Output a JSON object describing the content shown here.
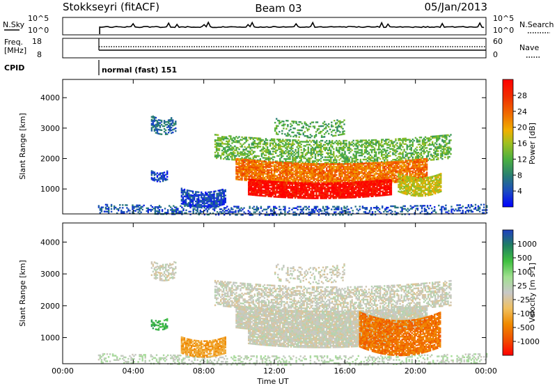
{
  "header": {
    "station": "Stokkseyri (fitACF)",
    "beam": "Beam 03",
    "date": "05/Jan/2013"
  },
  "strips": {
    "nsky": {
      "label": "N.Sky",
      "tick_top": "10^5",
      "tick_bottom": "10^0",
      "right_label": "N.Search",
      "right_tick_top": "10^5",
      "right_tick_bottom": "10^0"
    },
    "freq": {
      "label_line1": "Freq.",
      "label_line2": "[MHz]",
      "tick_top": "18",
      "tick_bottom": "8",
      "right_label": "Nave",
      "right_tick_top": "60",
      "right_tick_bottom": "0"
    },
    "cpid": {
      "label": "CPID",
      "mode": "normal (fast) 151"
    }
  },
  "chart_data": [
    {
      "type": "heatmap",
      "panel": "power",
      "ylabel": "Slant Range [km]",
      "y_ticks": [
        "1000",
        "2000",
        "3000",
        "4000"
      ],
      "ylim": [
        180,
        4600
      ],
      "xlim_hours": [
        0,
        24
      ],
      "colorbar": {
        "label": "Power [dB]",
        "ticks": [
          "4",
          "8",
          "12",
          "16",
          "20",
          "24",
          "28"
        ],
        "range": [
          0,
          32
        ],
        "colors": [
          "#0000ff",
          "#1c4cc0",
          "#2a8070",
          "#4cb040",
          "#a0c020",
          "#f0b000",
          "#f07000",
          "#f03000",
          "#ff0000"
        ]
      },
      "echo_regions": [
        {
          "t0": 2.0,
          "t1": 24.0,
          "r0": 200,
          "r1": 500,
          "level": 0.15,
          "density": 0.35
        },
        {
          "t0": 5.0,
          "t1": 6.4,
          "r0": 2900,
          "r1": 3400,
          "level": 0.2,
          "density": 0.5
        },
        {
          "t0": 5.0,
          "t1": 5.9,
          "r0": 1300,
          "r1": 1600,
          "level": 0.1,
          "density": 0.6
        },
        {
          "t0": 6.7,
          "t1": 9.2,
          "r0": 500,
          "r1": 1000,
          "level": 0.12,
          "density": 0.8
        },
        {
          "t0": 8.6,
          "t1": 22.0,
          "r0": 2000,
          "r1": 2800,
          "level": 0.4,
          "density": 0.5
        },
        {
          "t0": 9.8,
          "t1": 20.6,
          "r0": 1300,
          "r1": 2000,
          "level": 0.75,
          "density": 0.85
        },
        {
          "t0": 10.5,
          "t1": 18.6,
          "r0": 800,
          "r1": 1300,
          "level": 0.98,
          "density": 0.9
        },
        {
          "t0": 19.0,
          "t1": 21.4,
          "r0": 900,
          "r1": 1500,
          "level": 0.55,
          "density": 0.8
        },
        {
          "t0": 12.0,
          "t1": 16.0,
          "r0": 2800,
          "r1": 3300,
          "level": 0.35,
          "density": 0.25
        }
      ]
    },
    {
      "type": "heatmap",
      "panel": "velocity",
      "ylabel": "Slant Range [km]",
      "xlabel": "Time UT",
      "x_ticks": [
        "00:00",
        "04:00",
        "08:00",
        "12:00",
        "16:00",
        "20:00",
        "00:00"
      ],
      "y_ticks": [
        "1000",
        "2000",
        "3000",
        "4000"
      ],
      "ylim": [
        180,
        4600
      ],
      "xlim_hours": [
        0,
        24
      ],
      "colorbar": {
        "label": "Velocity [m s-1]",
        "ticks": [
          "1000",
          "500",
          "100",
          "25",
          "-25",
          "-100",
          "-500",
          "-1000"
        ],
        "range": [
          -1250,
          1250
        ],
        "colors": [
          "#ff0000",
          "#f05000",
          "#f08a00",
          "#f0c060",
          "#c8c8c8",
          "#a0e090",
          "#40c040",
          "#208060",
          "#2040c0"
        ]
      },
      "echo_regions": [
        {
          "t0": 2.0,
          "t1": 24.0,
          "r0": 200,
          "r1": 500,
          "level": 0.55,
          "density": 0.3
        },
        {
          "t0": 5.0,
          "t1": 6.4,
          "r0": 2900,
          "r1": 3400,
          "level": 0.5,
          "density": 0.5
        },
        {
          "t0": 5.0,
          "t1": 5.9,
          "r0": 1300,
          "r1": 1600,
          "level": 0.78,
          "density": 0.6
        },
        {
          "t0": 6.7,
          "t1": 9.2,
          "r0": 500,
          "r1": 1000,
          "level": 0.3,
          "density": 0.8
        },
        {
          "t0": 8.6,
          "t1": 22.0,
          "r0": 2000,
          "r1": 2800,
          "level": 0.5,
          "density": 0.55
        },
        {
          "t0": 9.8,
          "t1": 20.6,
          "r0": 1300,
          "r1": 2000,
          "level": 0.5,
          "density": 0.9
        },
        {
          "t0": 10.5,
          "t1": 18.6,
          "r0": 800,
          "r1": 1300,
          "level": 0.5,
          "density": 0.9
        },
        {
          "t0": 16.8,
          "t1": 21.4,
          "r0": 700,
          "r1": 1800,
          "level": 0.2,
          "density": 0.85
        },
        {
          "t0": 12.0,
          "t1": 16.0,
          "r0": 2800,
          "r1": 3300,
          "level": 0.5,
          "density": 0.25
        }
      ]
    }
  ]
}
